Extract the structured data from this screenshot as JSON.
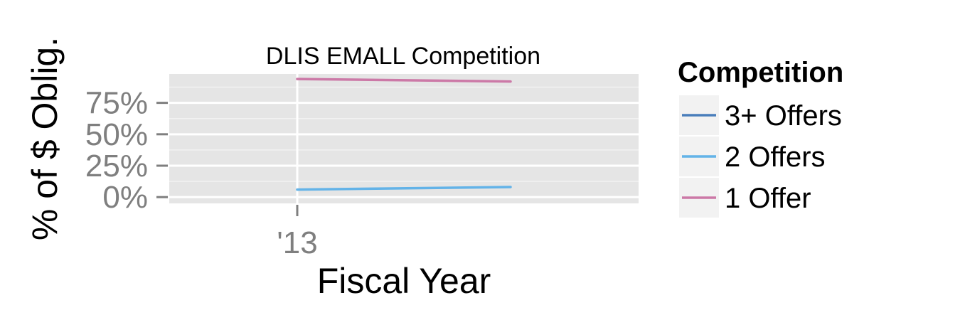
{
  "chart_data": {
    "type": "line",
    "title": "DLIS EMALL Competition",
    "xlabel": "Fiscal Year",
    "ylabel": "% of $ Oblig.",
    "x": [
      2013,
      2014
    ],
    "x_tick_values": [
      2013
    ],
    "x_tick_labels": [
      "'13"
    ],
    "xlim": [
      2012.4,
      2014.6
    ],
    "y_ticks": [
      0,
      0.25,
      0.5,
      0.75
    ],
    "y_tick_labels": [
      "0%",
      "25%",
      "50%",
      "75%"
    ],
    "ylim": [
      -0.05,
      0.98
    ],
    "grid": true,
    "legend": {
      "title": "Competition",
      "position": "right"
    },
    "series": [
      {
        "name": "3+ Offers",
        "color": "#4a7ebb",
        "values": [
          null,
          null
        ]
      },
      {
        "name": "2 Offers",
        "color": "#63b3e8",
        "values": [
          0.06,
          0.08
        ]
      },
      {
        "name": "1 Offer",
        "color": "#cc79a7",
        "values": [
          0.94,
          0.92
        ]
      }
    ]
  }
}
